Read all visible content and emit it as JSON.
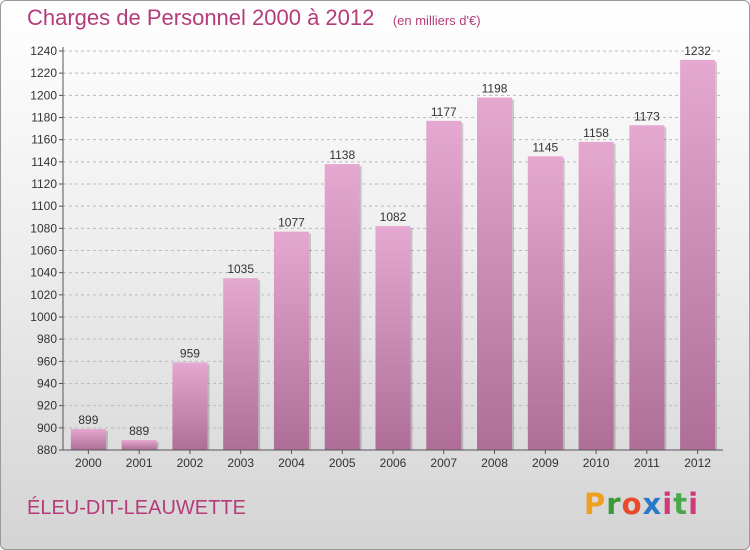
{
  "header": {
    "title": "Charges de Personnel 2000 à 2012",
    "subtitle": "(en milliers d'€)"
  },
  "footer": {
    "commune": "ÉLEU-DIT-LEAUWETTE",
    "logo_text": "Proxiti"
  },
  "colors": {
    "bar_top": "#e5a8d0",
    "bar_bottom": "#ae6e98",
    "title": "#b43c7a",
    "grid": "#bbbbbb"
  },
  "chart_data": {
    "type": "bar",
    "title": "Charges de Personnel 2000 à 2012",
    "subtitle": "(en milliers d'€)",
    "categories": [
      "2000",
      "2001",
      "2002",
      "2003",
      "2004",
      "2005",
      "2006",
      "2007",
      "2008",
      "2009",
      "2010",
      "2011",
      "2012"
    ],
    "values": [
      899,
      889,
      959,
      1035,
      1077,
      1138,
      1082,
      1177,
      1198,
      1145,
      1158,
      1173,
      1232
    ],
    "data_labels": [
      "899",
      "889",
      "959",
      "1035",
      "1077",
      "1138",
      "1082",
      "1177",
      "1198",
      "1145",
      "1158",
      "1173",
      "1232"
    ],
    "ylim": [
      880,
      1240
    ],
    "yticks": [
      880,
      900,
      920,
      940,
      960,
      980,
      1000,
      1020,
      1040,
      1060,
      1080,
      1100,
      1120,
      1140,
      1160,
      1180,
      1200,
      1220,
      1240
    ],
    "grid": true,
    "legend": "none"
  }
}
